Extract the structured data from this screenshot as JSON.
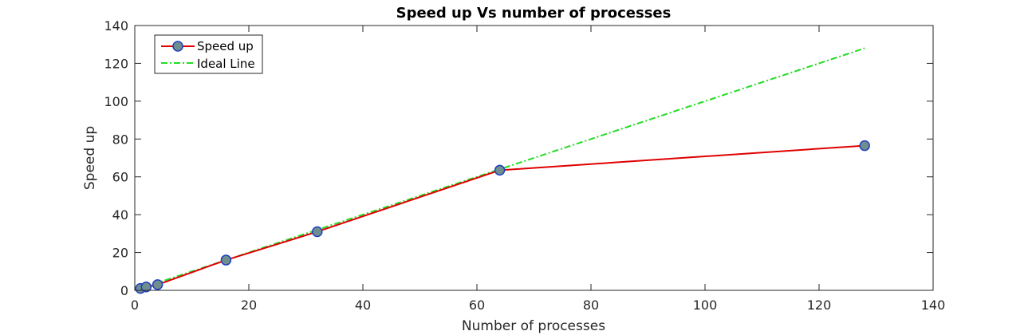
{
  "chart_data": {
    "type": "line",
    "title": "Speed up Vs number of processes",
    "xlabel": "Number of processes",
    "ylabel": "Speed up",
    "xlim": [
      0,
      140
    ],
    "ylim": [
      0,
      140
    ],
    "xticks": [
      0,
      20,
      40,
      60,
      80,
      100,
      120,
      140
    ],
    "yticks": [
      0,
      20,
      40,
      60,
      80,
      100,
      120,
      140
    ],
    "grid": false,
    "legend_position": "top-left",
    "series": [
      {
        "name": "Speed up",
        "color": "#e00000",
        "marker": "circle",
        "marker_face": "#6f8f8f",
        "marker_edge": "#1f3fbf",
        "line_style": "solid",
        "x": [
          1,
          2,
          4,
          16,
          32,
          64,
          128
        ],
        "y": [
          1,
          1.8,
          3,
          16,
          31,
          63.5,
          76.5
        ]
      },
      {
        "name": "Ideal Line",
        "color": "#22dd22",
        "marker": "none",
        "line_style": "dash-dot",
        "x": [
          1,
          128
        ],
        "y": [
          1,
          128
        ]
      }
    ]
  }
}
